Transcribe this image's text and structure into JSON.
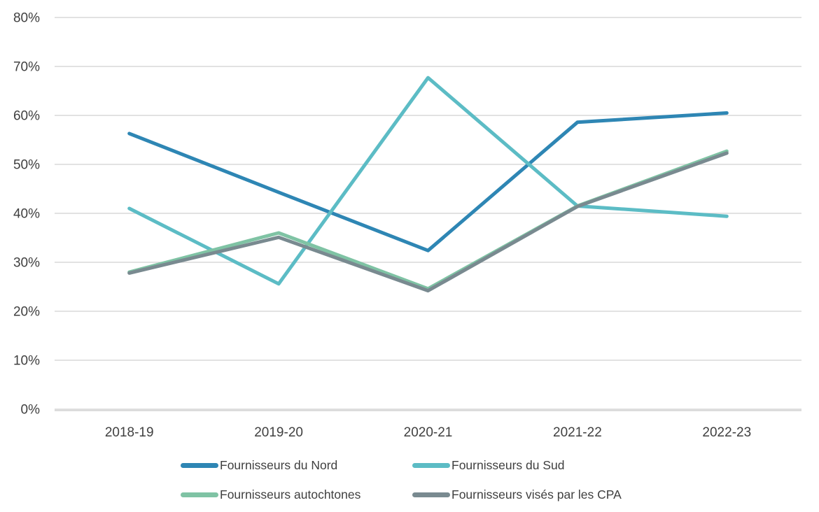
{
  "chart_data": {
    "type": "line",
    "title": "",
    "xlabel": "",
    "ylabel": "",
    "categories": [
      "2018-19",
      "2019-20",
      "2020-21",
      "2021-22",
      "2022-23"
    ],
    "series": [
      {
        "name": "Fournisseurs du Nord",
        "color": "#2E86B4",
        "values": [
          56.3,
          44.3,
          32.4,
          58.6,
          60.5
        ]
      },
      {
        "name": "Fournisseurs du Sud",
        "color": "#5CBCC5",
        "values": [
          41.0,
          25.6,
          67.7,
          41.5,
          39.4
        ]
      },
      {
        "name": "Fournisseurs autochtones",
        "color": "#7FC3A4",
        "values": [
          28.0,
          36.0,
          24.6,
          41.5,
          52.7
        ]
      },
      {
        "name": "Fournisseurs visés par les CPA",
        "color": "#798A90",
        "values": [
          27.8,
          35.1,
          24.2,
          41.4,
          52.3
        ]
      }
    ],
    "ylim": [
      0,
      80
    ],
    "y_tick_step": 10,
    "y_tick_labels": [
      "0%",
      "10%",
      "20%",
      "30%",
      "40%",
      "50%",
      "60%",
      "70%",
      "80%"
    ],
    "grid": true,
    "gridline_color": "#D9D9D9",
    "axis_line_color": "#D9D9D9",
    "text_color": "#404040",
    "legend_position": "bottom"
  }
}
